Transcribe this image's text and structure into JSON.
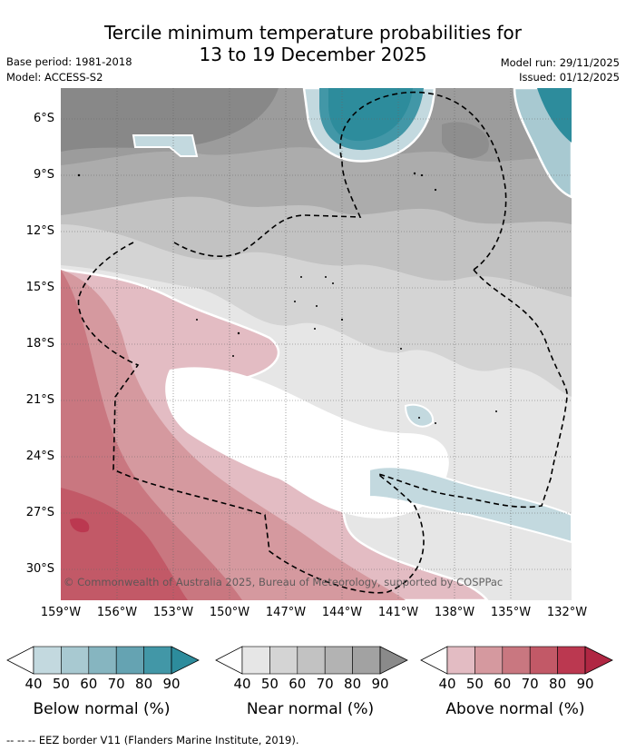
{
  "title_line1": "Tercile minimum temperature probabilities for",
  "title_line2": "13 to 19 December 2025",
  "base_period": "Base period: 1981-2018",
  "model": "Model: ACCESS-S2",
  "model_run": "Model run: 29/11/2025",
  "issued": "Issued: 01/12/2025",
  "copyright": "© Commonwealth of Australia 2025, Bureau of Meteorology, supported by COSPPac",
  "eez_note": "--  --  -- EEZ border V11 (Flanders Marine Institute, 2019).",
  "lat_labels": [
    "6°S",
    "9°S",
    "12°S",
    "15°S",
    "18°S",
    "21°S",
    "24°S",
    "27°S",
    "30°S"
  ],
  "lon_labels": [
    "159°W",
    "156°W",
    "153°W",
    "150°W",
    "147°W",
    "144°W",
    "141°W",
    "138°W",
    "135°W",
    "132°W"
  ],
  "colorbars": [
    {
      "title": "Below normal (%)",
      "labels": [
        "40",
        "50",
        "60",
        "70",
        "80",
        "90"
      ],
      "colors": [
        "#c3d9df",
        "#a8c9d1",
        "#86b5c0",
        "#65a3b2",
        "#4297a7",
        "#2d8c9c"
      ]
    },
    {
      "title": "Near normal (%)",
      "labels": [
        "40",
        "50",
        "60",
        "70",
        "80",
        "90"
      ],
      "colors": [
        "#e6e6e6",
        "#d4d4d4",
        "#c2c2c2",
        "#b3b3b3",
        "#a2a2a2",
        "#8a8a8a"
      ]
    },
    {
      "title": "Above normal (%)",
      "labels": [
        "40",
        "50",
        "60",
        "70",
        "80",
        "90"
      ],
      "colors": [
        "#e3bcc3",
        "#d5999f",
        "#c97780",
        "#c25967",
        "#bb3850",
        "#b02743"
      ]
    }
  ]
}
